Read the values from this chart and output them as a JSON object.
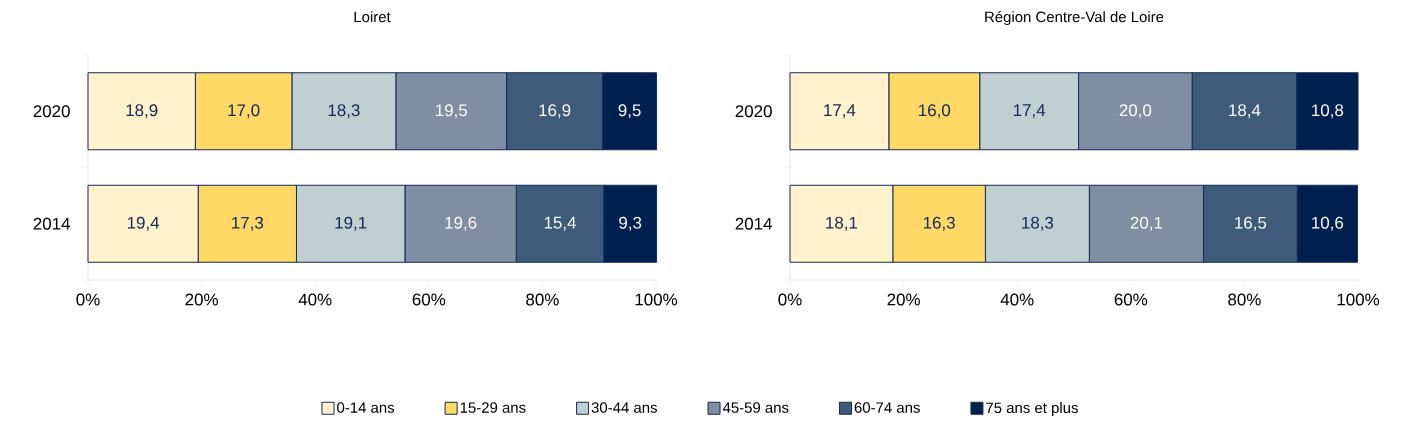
{
  "chart_data": [
    {
      "type": "bar",
      "orientation": "horizontal",
      "stacked": true,
      "title": "Loiret",
      "categories": [
        "2020",
        "2014"
      ],
      "xlim": [
        0,
        100
      ],
      "xticks": [
        {
          "value": 0,
          "label": "0%"
        },
        {
          "value": 20,
          "label": "20%"
        },
        {
          "value": 40,
          "label": "40%"
        },
        {
          "value": 60,
          "label": "60%"
        },
        {
          "value": 80,
          "label": "80%"
        },
        {
          "value": 100,
          "label": "100%"
        }
      ],
      "legend": "bottom",
      "series": [
        {
          "name": "0-14 ans",
          "color": "#fff2cc",
          "values": [
            18.9,
            19.4
          ],
          "value_labels": [
            "18,9",
            "19,4"
          ]
        },
        {
          "name": "15-29 ans",
          "color": "#ffd966",
          "values": [
            17.0,
            17.3
          ],
          "value_labels": [
            "17,0",
            "17,3"
          ]
        },
        {
          "name": "30-44 ans",
          "color": "#c0d0d2",
          "values": [
            18.3,
            19.1
          ],
          "value_labels": [
            "18,3",
            "19,1"
          ]
        },
        {
          "name": "45-59 ans",
          "color": "#7f8ea0",
          "values": [
            19.5,
            19.6
          ],
          "value_labels": [
            "19,5",
            "19,6"
          ]
        },
        {
          "name": "60-74 ans",
          "color": "#3f5b7a",
          "values": [
            16.9,
            15.4
          ],
          "value_labels": [
            "16,9",
            "15,4"
          ]
        },
        {
          "name": "75 ans et plus",
          "color": "#002050",
          "values": [
            9.5,
            9.3
          ],
          "value_labels": [
            "9,5",
            "9,3"
          ]
        }
      ]
    },
    {
      "type": "bar",
      "orientation": "horizontal",
      "stacked": true,
      "title": "Région Centre-Val de Loire",
      "categories": [
        "2020",
        "2014"
      ],
      "xlim": [
        0,
        100
      ],
      "xticks": [
        {
          "value": 0,
          "label": "0%"
        },
        {
          "value": 20,
          "label": "20%"
        },
        {
          "value": 40,
          "label": "40%"
        },
        {
          "value": 60,
          "label": "60%"
        },
        {
          "value": 80,
          "label": "80%"
        },
        {
          "value": 100,
          "label": "100%"
        }
      ],
      "series": [
        {
          "color": "#fff2cc",
          "values": [
            17.4,
            18.1
          ],
          "value_labels": [
            "17,4",
            "18,1"
          ]
        },
        {
          "color": "#ffd966",
          "values": [
            16.0,
            16.3
          ],
          "value_labels": [
            "16,0",
            "16,3"
          ]
        },
        {
          "color": "#c0d0d2",
          "values": [
            17.4,
            18.3
          ],
          "value_labels": [
            "17,4",
            "18,3"
          ]
        },
        {
          "color": "#7f8ea0",
          "values": [
            20.0,
            20.1
          ],
          "value_labels": [
            "20,0",
            "20,1"
          ]
        },
        {
          "color": "#3f5b7a",
          "values": [
            18.4,
            16.5
          ],
          "value_labels": [
            "18,4",
            "16,5"
          ]
        },
        {
          "color": "#002050",
          "values": [
            10.8,
            10.6
          ],
          "value_labels": [
            "10,8",
            "10,6"
          ]
        }
      ]
    }
  ]
}
